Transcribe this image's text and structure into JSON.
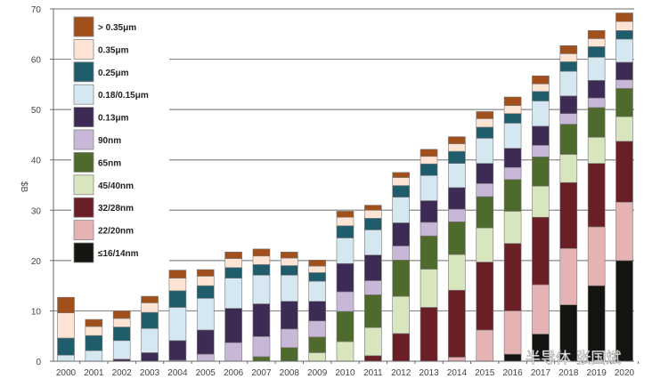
{
  "chart_data": {
    "type": "bar",
    "stacked": true,
    "ylabel": "$B",
    "xlabel": "",
    "ylim": [
      0,
      70
    ],
    "yticks": [
      0,
      10,
      20,
      30,
      40,
      50,
      60,
      70
    ],
    "grid": true,
    "legend_placement": "top-left",
    "categories": [
      "2000",
      "2001",
      "2002",
      "2003",
      "2004",
      "2005",
      "2006",
      "2007",
      "2008",
      "2009",
      "2010",
      "2011",
      "2012",
      "2013",
      "2014",
      "2015",
      "2016",
      "2017",
      "2018",
      "2019",
      "2020"
    ],
    "series": [
      {
        "name": "≤16/14nm",
        "color": "#141410",
        "values": [
          0,
          0,
          0,
          0,
          0,
          0,
          0,
          0,
          0,
          0,
          0,
          0,
          0,
          0,
          0,
          0,
          1.4,
          5.4,
          11.2,
          15.0,
          20.0
        ]
      },
      {
        "name": "22/20nm",
        "color": "#e6b3b5",
        "values": [
          0,
          0,
          0,
          0,
          0,
          0,
          0,
          0,
          0,
          0,
          0,
          0,
          0,
          0,
          0.8,
          6.2,
          8.6,
          9.8,
          11.2,
          11.7,
          11.6
        ]
      },
      {
        "name": "32/28nm",
        "color": "#6a1f27",
        "values": [
          0,
          0,
          0,
          0,
          0,
          0,
          0,
          0,
          0,
          0,
          0,
          1.1,
          5.5,
          10.7,
          13.3,
          13.5,
          13.4,
          13.4,
          13.1,
          12.6,
          12.1
        ]
      },
      {
        "name": "45/40nm",
        "color": "#d8e5bd",
        "values": [
          0,
          0,
          0,
          0,
          0,
          0,
          0,
          0,
          0,
          1.7,
          3.9,
          5.6,
          7.4,
          7.6,
          7.1,
          6.8,
          6.4,
          6.2,
          5.6,
          5.2,
          4.9
        ]
      },
      {
        "name": "65nm",
        "color": "#4e6a2c",
        "values": [
          0,
          0,
          0,
          0,
          0,
          0,
          0,
          0.9,
          2.7,
          3.1,
          6.0,
          6.5,
          7.2,
          6.6,
          6.5,
          6.2,
          6.3,
          5.8,
          6.0,
          5.9,
          5.6
        ]
      },
      {
        "name": "90nm",
        "color": "#c8b7d7",
        "values": [
          0,
          0,
          0,
          0,
          0.2,
          1.4,
          3.7,
          4.0,
          3.7,
          3.2,
          3.9,
          2.8,
          2.8,
          2.7,
          2.5,
          2.6,
          2.4,
          2.3,
          2.1,
          1.9,
          1.7
        ]
      },
      {
        "name": "0.13μm",
        "color": "#3d2a55",
        "values": [
          0,
          0,
          0.4,
          1.7,
          3.9,
          4.8,
          6.8,
          6.5,
          5.5,
          3.9,
          5.6,
          5.1,
          4.6,
          4.3,
          4.3,
          4.0,
          3.8,
          3.8,
          3.5,
          3.5,
          3.5
        ]
      },
      {
        "name": "0.18/0.15μm",
        "color": "#d5e8f1",
        "values": [
          1.2,
          2.1,
          3.7,
          4.8,
          6.6,
          6.3,
          6.0,
          5.7,
          5.2,
          4.0,
          5.1,
          5.0,
          5.1,
          5.0,
          4.8,
          5.0,
          5.0,
          5.0,
          4.9,
          4.6,
          4.6
        ]
      },
      {
        "name": "0.25μm",
        "color": "#1f5d6c",
        "values": [
          3.4,
          3.0,
          2.7,
          3.2,
          3.3,
          2.5,
          2.1,
          2.1,
          1.9,
          1.7,
          2.4,
          2.3,
          2.3,
          2.3,
          2.4,
          2.2,
          1.9,
          1.9,
          1.9,
          2.1,
          1.7
        ]
      },
      {
        "name": "0.35μm",
        "color": "#fde4d4",
        "values": [
          5.0,
          1.8,
          1.7,
          1.9,
          2.5,
          1.9,
          1.8,
          1.7,
          1.5,
          1.3,
          1.7,
          1.6,
          1.6,
          1.5,
          1.5,
          1.7,
          1.6,
          1.5,
          1.6,
          1.6,
          1.8
        ]
      },
      {
        "name": "> 0.35μm",
        "color": "#a2501b",
        "values": [
          3.1,
          1.4,
          1.5,
          1.3,
          1.6,
          1.3,
          1.3,
          1.4,
          1.2,
          1.2,
          1.2,
          1.0,
          1.0,
          1.4,
          1.4,
          1.4,
          1.7,
          1.6,
          1.6,
          1.6,
          1.7
        ]
      }
    ]
  },
  "watermark": "半导体 张国斌"
}
